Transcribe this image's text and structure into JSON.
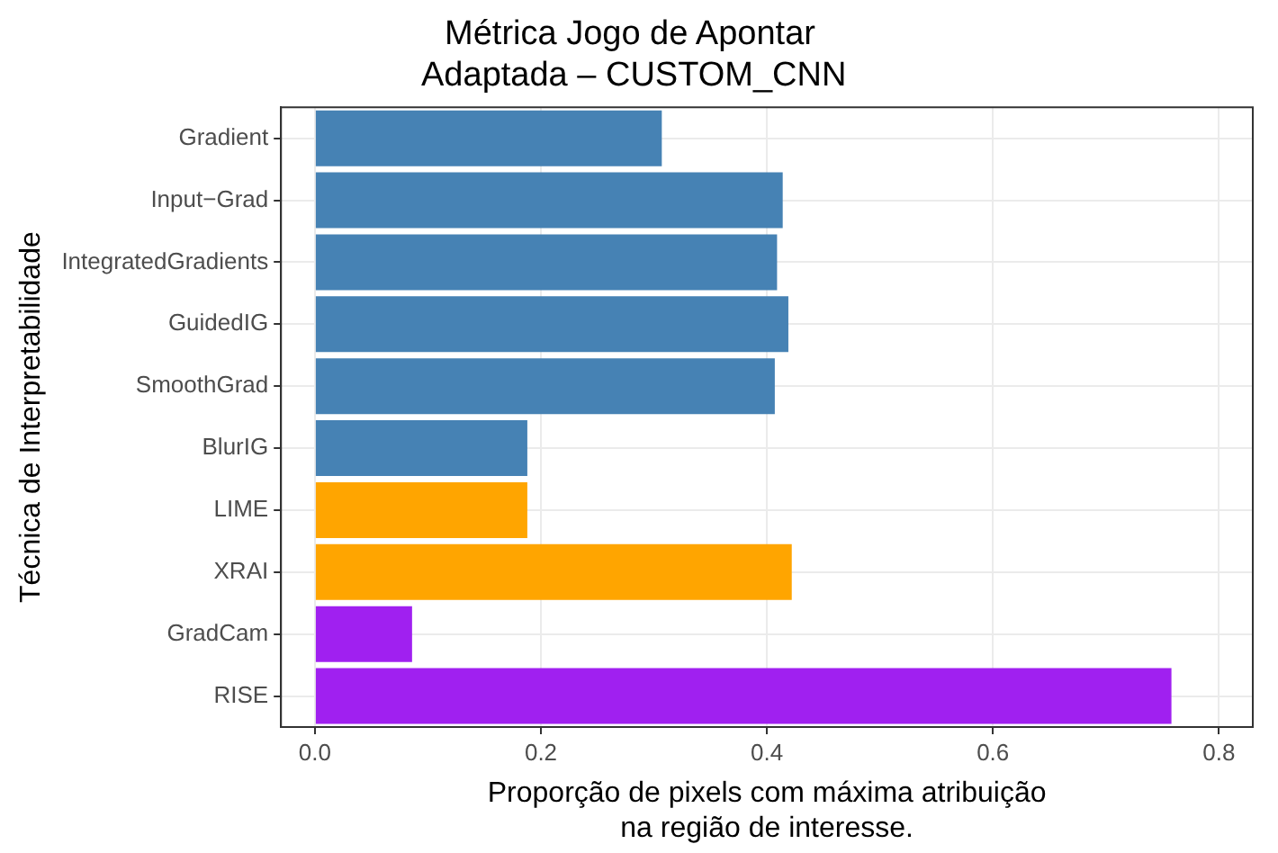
{
  "chart_data": {
    "type": "bar",
    "orientation": "horizontal",
    "title": "Métrica Jogo de Apontar\n Adaptada – CUSTOM_CNN",
    "xlabel": "Proporção de pixels com máxima atribuição\nna região de interesse.",
    "ylabel": "Técnica de Interpretabilidade",
    "categories": [
      "Gradient",
      "Input−Grad",
      "IntegratedGradients",
      "GuidedIG",
      "SmoothGrad",
      "BlurIG",
      "LIME",
      "XRAI",
      "GradCam",
      "RISE"
    ],
    "values": [
      0.307,
      0.414,
      0.409,
      0.419,
      0.407,
      0.188,
      0.188,
      0.422,
      0.086,
      0.758
    ],
    "colors": [
      "#4682b4",
      "#4682b4",
      "#4682b4",
      "#4682b4",
      "#4682b4",
      "#4682b4",
      "#ffa500",
      "#ffa500",
      "#a020f0",
      "#a020f0"
    ],
    "xlim": [
      -0.03,
      0.83
    ],
    "xticks": [
      {
        "value": 0,
        "label": "0.0"
      },
      0.2,
      0.4,
      0.6,
      0.8
    ],
    "grid": true,
    "legend": false
  }
}
